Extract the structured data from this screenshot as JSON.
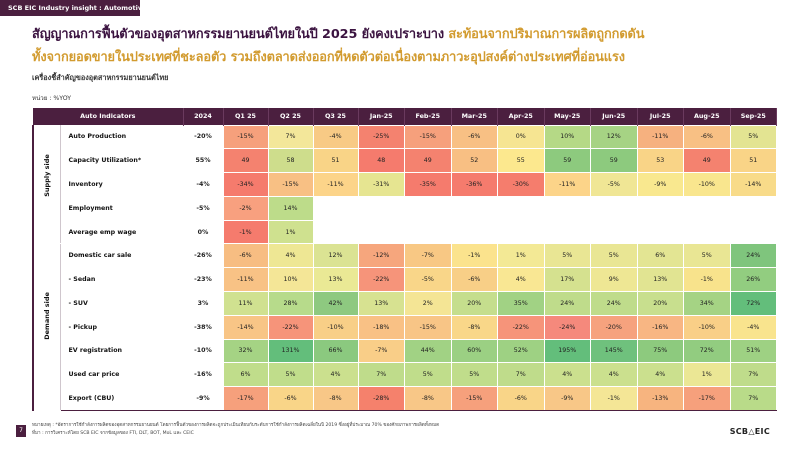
{
  "tag": "SCB EIC Industry insight : Automotive",
  "headline": {
    "part1": "สัญญาณการฟื้นตัวของอุตสาหกรรมยานยนต์ไทยในปี 2025 ยังคงเปราะบาง",
    "part2": "สะท้อนจากปริมาณการผลิตถูกกดดัน",
    "part3": "ทั้งจากยอดขายในประเทศที่ชะลอตัว รวมถึงตลาดส่งออกที่หดตัวต่อเนื่องตามภาวะอุปสงค์ต่างประเทศที่อ่อนแรง"
  },
  "subtitle": "เครื่องชี้สำคัญของอุตสาหกรรมยานยนต์ไทย",
  "unit": "หน่วย : %YOY",
  "table": {
    "header_label": "Auto Indicators",
    "periods": [
      "2024",
      "Q1 25",
      "Q2 25",
      "Q3 25",
      "Jan-25",
      "Feb-25",
      "Mar-25",
      "Apr-25",
      "May-25",
      "Jun-25",
      "Jul-25",
      "Aug-25",
      "Sep-25"
    ],
    "groups": [
      {
        "name": "Supply side",
        "rows": [
          {
            "label": "Auto Production",
            "values": [
              "-20%",
              "-15%",
              "7%",
              "-4%",
              "-25%",
              "-15%",
              "-6%",
              "0%",
              "10%",
              "12%",
              "-11%",
              "-6%",
              "5%"
            ]
          },
          {
            "label": "Capacity Utilization*",
            "values": [
              "55%",
              "49",
              "58",
              "51",
              "48",
              "49",
              "52",
              "55",
              "59",
              "59",
              "53",
              "49",
              "51"
            ]
          },
          {
            "label": "Inventory",
            "values": [
              "-4%",
              "-34%",
              "-15%",
              "-11%",
              "-31%",
              "-35%",
              "-36%",
              "-30%",
              "-11%",
              "-5%",
              "-9%",
              "-10%",
              "-14%"
            ]
          },
          {
            "label": "Employment",
            "values": [
              "-5%",
              "-2%",
              "14%",
              "",
              "",
              "",
              "",
              "",
              "",
              "",
              "",
              "",
              ""
            ]
          },
          {
            "label": "Average emp wage",
            "values": [
              "0%",
              "-1%",
              "1%",
              "",
              "",
              "",
              "",
              "",
              "",
              "",
              "",
              "",
              ""
            ]
          }
        ]
      },
      {
        "name": "Demand side",
        "rows": [
          {
            "label": "Domestic car sale",
            "values": [
              "-26%",
              "-6%",
              "4%",
              "12%",
              "-12%",
              "-7%",
              "-1%",
              "1%",
              "5%",
              "5%",
              "6%",
              "5%",
              "24%"
            ]
          },
          {
            "label": "- Sedan",
            "values": [
              "-23%",
              "-11%",
              "10%",
              "13%",
              "-22%",
              "-5%",
              "-6%",
              "4%",
              "17%",
              "9%",
              "13%",
              "-1%",
              "26%"
            ]
          },
          {
            "label": "- SUV",
            "values": [
              "3%",
              "11%",
              "28%",
              "42%",
              "13%",
              "2%",
              "20%",
              "35%",
              "24%",
              "24%",
              "20%",
              "34%",
              "72%"
            ]
          },
          {
            "label": "- Pickup",
            "values": [
              "-38%",
              "-14%",
              "-22%",
              "-10%",
              "-18%",
              "-15%",
              "-8%",
              "-22%",
              "-24%",
              "-20%",
              "-16%",
              "-10%",
              "-4%"
            ]
          },
          {
            "label": "EV registration",
            "values": [
              "-10%",
              "32%",
              "131%",
              "66%",
              "-7%",
              "44%",
              "60%",
              "52%",
              "195%",
              "145%",
              "75%",
              "72%",
              "51%"
            ]
          },
          {
            "label": "Used car price",
            "values": [
              "-16%",
              "6%",
              "5%",
              "4%",
              "7%",
              "5%",
              "5%",
              "7%",
              "4%",
              "4%",
              "4%",
              "1%",
              "7%"
            ]
          },
          {
            "label": "Export (CBU)",
            "values": [
              "-9%",
              "-17%",
              "-6%",
              "-8%",
              "-28%",
              "-8%",
              "-15%",
              "-6%",
              "-9%",
              "-1%",
              "-13%",
              "-17%",
              "7%"
            ]
          }
        ]
      }
    ]
  },
  "cell_colors": {
    "Auto Production": [
      "#f6a07c",
      "#f3e79a",
      "#f8ca85",
      "#f4826f",
      "#f6a07c",
      "#f8c084",
      "#f6e592",
      "#b5d986",
      "#a6d384",
      "#f6b17f",
      "#f8c084",
      "#e3e492"
    ],
    "Capacity Utilization*": [
      "#f4826f",
      "#cedd8c",
      "#f9d487",
      "#f57b6d",
      "#f4826f",
      "#f8bf83",
      "#fce88e",
      "#8dca7e",
      "#8dca7e",
      "#f9d487",
      "#f4826f",
      "#f9d487"
    ],
    "Inventory": [
      "#f57b6d",
      "#f8c084",
      "#fcd489",
      "#e6e591",
      "#f57b6d",
      "#f57b6d",
      "#f57d6d",
      "#fcd489",
      "#f0e695",
      "#f9e88f",
      "#f9e68e",
      "#f8db89"
    ],
    "Employment": [
      "#f8a07f",
      "#bddc8a"
    ],
    "Average emp wage": [
      "#f57b6d",
      "#cfe18f"
    ],
    "Domestic car sale": [
      "#f7bd82",
      "#eee794",
      "#dbe393",
      "#f6a67d",
      "#f8c884",
      "#fbe38d",
      "#f3e995",
      "#e9e694",
      "#e9e694",
      "#e3e593",
      "#e9e694",
      "#7fc57d"
    ],
    "- Sedan": [
      "#f8c285",
      "#f4e697",
      "#eae995",
      "#f6947a",
      "#f9d689",
      "#f8cf87",
      "#f9e793",
      "#d5e18f",
      "#eee794",
      "#e1e492",
      "#f8e38c",
      "#92cd80"
    ],
    "- SUV": [
      "#d0e190",
      "#b7db8b",
      "#8ec980",
      "#d7e291",
      "#f4e595",
      "#c5de8d",
      "#a1d284",
      "#bfdc8b",
      "#bfdc8b",
      "#c8df8e",
      "#a5d384",
      "#63be7b"
    ],
    "- Pickup": [
      "#f8c586",
      "#f6947a",
      "#f8cf87",
      "#f9c185",
      "#f8c586",
      "#f9d789",
      "#f6947a",
      "#f5897c",
      "#f6a27e",
      "#f8b683",
      "#f9cf87",
      "#f9e48e"
    ],
    "EV registration": [
      "#a5d384",
      "#63be7b",
      "#8bc97f",
      "#f9ce88",
      "#a1d284",
      "#9bd083",
      "#9ed183",
      "#63be7b",
      "#6fc17d",
      "#8dca7e",
      "#92cc80",
      "#9ed183"
    ],
    "Used car price": [
      "#c0dd8b",
      "#c0dd8b",
      "#cbe08e",
      "#bfdc8b",
      "#c0dd8b",
      "#c0dd8b",
      "#bfdc8b",
      "#cbe08e",
      "#cbe08e",
      "#cbe08e",
      "#ebe795",
      "#bfdc8b"
    ],
    "Export (CBU)": [
      "#f6a07c",
      "#f9d588",
      "#f8c787",
      "#f5816c",
      "#f8c787",
      "#f6a07c",
      "#f9d588",
      "#f8c787",
      "#f4e696",
      "#f7b47f",
      "#f6a07c",
      "#b9db89"
    ]
  },
  "page_number": "7",
  "note_lines": [
    "หมายเหตุ : *อัตราการใช้กำลังการผลิตของอุตสาหกรรมยานยนต์ โดยการฟื้นตัวของการผลิตจะถูกประเมินเทียบกับระดับการใช้กำลังการผลิตเฉลี่ยในปี 2019 ซึ่งอยู่ที่ประมาณ 70% ของศักยภาพการผลิตทั้งหมด",
    "ที่มา : การวิเคราะห์โดย SCB EIC จากข้อมูลของ FTI, DLT, BOT, MoL และ CEIC"
  ],
  "logo": "SCB△EIC"
}
